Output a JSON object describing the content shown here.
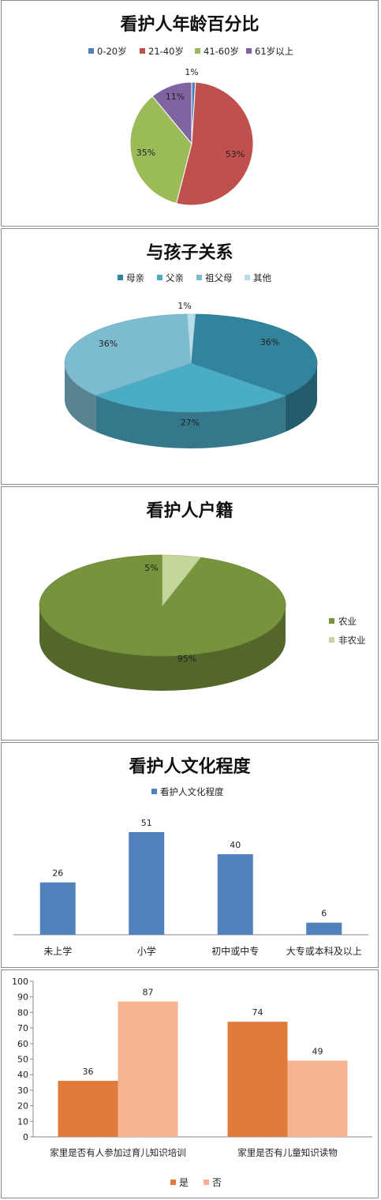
{
  "chart_data": [
    {
      "type": "pie",
      "title": "看护人年龄百分比",
      "categories": [
        "0-20岁",
        "21-40岁",
        "41-60岁",
        "61岁以上"
      ],
      "values": [
        1,
        53,
        35,
        11
      ],
      "value_labels": [
        "1%",
        "53%",
        "35%",
        "11%"
      ],
      "colors": [
        "#4F81BD",
        "#C0504D",
        "#9BBB59",
        "#8064A2"
      ],
      "legend_position": "top"
    },
    {
      "type": "pie",
      "title": "与孩子关系",
      "categories": [
        "母亲",
        "父亲",
        "祖父母",
        "其他"
      ],
      "values": [
        36,
        27,
        36,
        1
      ],
      "value_labels": [
        "36%",
        "27%",
        "36%",
        "1%"
      ],
      "colors": [
        "#31849B",
        "#4BACC6",
        "#7DBCD0",
        "#B7DEE8"
      ],
      "legend_position": "top"
    },
    {
      "type": "pie",
      "title": "看护人户籍",
      "categories": [
        "农业",
        "非农业"
      ],
      "values": [
        95,
        5
      ],
      "value_labels": [
        "95%",
        "5%"
      ],
      "colors": [
        "#77933C",
        "#C3D69B"
      ],
      "legend_position": "right"
    },
    {
      "type": "bar",
      "title": "看护人文化程度",
      "categories": [
        "未上学",
        "小学",
        "初中或中专",
        "大专或本科及以上"
      ],
      "series": [
        {
          "name": "看护人文化程度",
          "values": [
            26,
            51,
            40,
            6
          ]
        }
      ],
      "colors": [
        "#4F81BD"
      ],
      "legend_position": "top"
    },
    {
      "type": "bar",
      "title": "",
      "categories": [
        "家里是否有人参加过育儿知识培训",
        "家里是否有儿童知识读物"
      ],
      "series": [
        {
          "name": "是",
          "values": [
            36,
            74
          ]
        },
        {
          "name": "否",
          "values": [
            87,
            49
          ]
        }
      ],
      "colors": [
        "#E07B39",
        "#F7B38F"
      ],
      "ylim": [
        0,
        100
      ],
      "yticks": [
        "0",
        "10",
        "20",
        "30",
        "40",
        "50",
        "60",
        "70",
        "80",
        "90",
        "100"
      ],
      "legend_position": "bottom"
    }
  ]
}
